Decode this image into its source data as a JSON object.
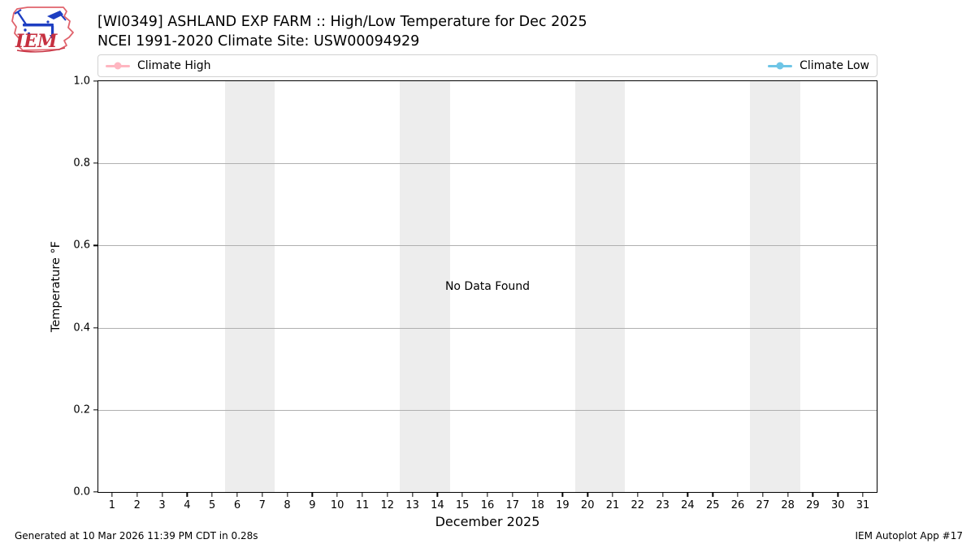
{
  "header": {
    "title": "[WI0349] ASHLAND EXP FARM :: High/Low Temperature for Dec 2025",
    "subtitle": "NCEI 1991-2020 Climate Site: USW00094929",
    "logo_text": "IEM"
  },
  "legend": {
    "items": [
      {
        "label": "Climate High",
        "color": "#ffb6c1"
      },
      {
        "label": "Climate Low",
        "color": "#6ec5e6"
      }
    ]
  },
  "chart_data": {
    "type": "line",
    "title": "[WI0349] ASHLAND EXP FARM :: High/Low Temperature for Dec 2025",
    "subtitle": "NCEI 1991-2020 Climate Site: USW00094929",
    "xlabel": "December 2025",
    "ylabel": "Temperature °F",
    "xlim": [
      0.45,
      31.55
    ],
    "ylim": [
      0.0,
      1.0
    ],
    "x_ticks": [
      1,
      2,
      3,
      4,
      5,
      6,
      7,
      8,
      9,
      10,
      11,
      12,
      13,
      14,
      15,
      16,
      17,
      18,
      19,
      20,
      21,
      22,
      23,
      24,
      25,
      26,
      27,
      28,
      29,
      30,
      31
    ],
    "y_ticks": [
      {
        "label": "0.0",
        "value": 0.0
      },
      {
        "label": "0.2",
        "value": 0.2
      },
      {
        "label": "0.4",
        "value": 0.4
      },
      {
        "label": "0.6",
        "value": 0.6
      },
      {
        "label": "0.8",
        "value": 0.8
      },
      {
        "label": "1.0",
        "value": 1.0
      }
    ],
    "grid": "horizontal",
    "grid_color": "#b0b0b0",
    "legend_position": "top full-width: high at left, low at right",
    "series": [
      {
        "name": "Climate High",
        "color": "#ffb6c1",
        "x": [],
        "y": []
      },
      {
        "name": "Climate Low",
        "color": "#6ec5e6",
        "x": [],
        "y": []
      }
    ],
    "no_data_message": "No Data Found",
    "weekend_bands": [
      [
        5.5,
        7.5
      ],
      [
        12.5,
        14.5
      ],
      [
        19.5,
        21.5
      ],
      [
        26.5,
        28.5
      ]
    ],
    "band_color": "#ededed"
  },
  "footer": {
    "left": "Generated at 10 Mar 2026 11:39 PM CDT in 0.28s",
    "right": "IEM Autoplot App #17"
  }
}
